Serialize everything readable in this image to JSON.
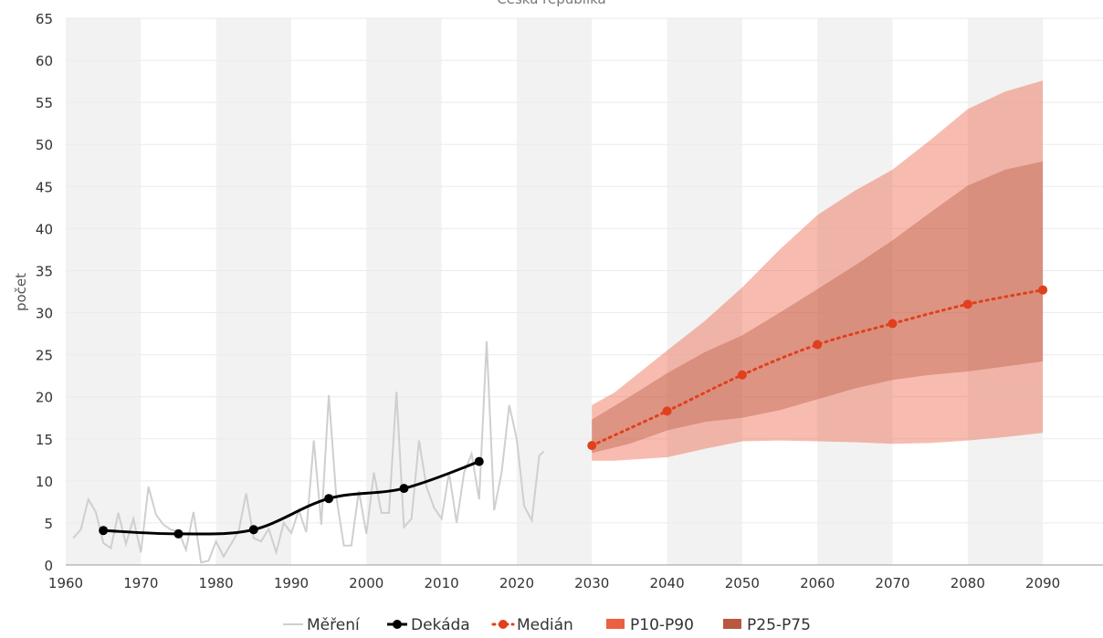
{
  "chart_data": {
    "type": "line",
    "title": "Česká republika",
    "ylabel": "počet",
    "xlabel": "",
    "xlim": [
      1960,
      2098
    ],
    "ylim": [
      0,
      65
    ],
    "x_ticks": [
      1960,
      1970,
      1980,
      1990,
      2000,
      2010,
      2020,
      2030,
      2040,
      2050,
      2060,
      2070,
      2080,
      2090
    ],
    "y_ticks": [
      0,
      5,
      10,
      15,
      20,
      25,
      30,
      35,
      40,
      45,
      50,
      55,
      60,
      65
    ],
    "grid": true,
    "legend_position": "bottom",
    "colors": {
      "measurement": "#cfcfcf",
      "decade": "#000000",
      "median": "#e0401c",
      "p10_p90": "#eb6040",
      "p25_p75": "#b85840",
      "band_shade": "#f2f2f2"
    },
    "series": [
      {
        "name": "Měření",
        "x": [
          1961,
          1962,
          1963,
          1964,
          1965,
          1966,
          1967,
          1968,
          1969,
          1970,
          1971,
          1972,
          1973,
          1974,
          1975,
          1976,
          1977,
          1978,
          1979,
          1980,
          1981,
          1982,
          1983,
          1984,
          1985,
          1986,
          1987,
          1988,
          1989,
          1990,
          1991,
          1992,
          1993,
          1994,
          1995,
          1996,
          1997,
          1998,
          1999,
          2000,
          2001,
          2002,
          2003,
          2004,
          2005,
          2006,
          2007,
          2008,
          2009,
          2010,
          2011,
          2012,
          2013,
          2014,
          2015,
          2016,
          2017,
          2018,
          2019,
          2020,
          2021,
          2022,
          2023
        ],
        "y": [
          3.2,
          4.2,
          7.8,
          6.3,
          2.6,
          2.0,
          6.2,
          2.5,
          5.5,
          1.5,
          9.3,
          6.0,
          4.8,
          4.2,
          4.0,
          1.8,
          6.3,
          0.3,
          0.5,
          2.8,
          1.0,
          2.5,
          4.0,
          8.5,
          3.2,
          2.8,
          4.3,
          1.5,
          5.0,
          3.8,
          6.5,
          3.9,
          14.8,
          4.8,
          20.2,
          8.1,
          2.3,
          2.3,
          8.8,
          3.7,
          11.0,
          6.2,
          6.2,
          20.6,
          4.5,
          5.5,
          14.8,
          9.3,
          6.8,
          5.5,
          11.0,
          5.0,
          11.0,
          13.2,
          7.8,
          26.6,
          6.5,
          11.0,
          19.0,
          15.0,
          7.0,
          5.3,
          13.0
        ],
        "y_last": 13.5
      },
      {
        "name": "Dekáda",
        "x": [
          1965,
          1975,
          1985,
          1995,
          2005,
          2015
        ],
        "y": [
          4.1,
          3.7,
          4.2,
          7.9,
          9.1,
          12.3
        ]
      },
      {
        "name": "Medián",
        "x": [
          2030,
          2040,
          2050,
          2060,
          2070,
          2080,
          2090
        ],
        "y": [
          14.2,
          18.3,
          22.6,
          26.2,
          28.7,
          31.0,
          32.7
        ]
      },
      {
        "name": "P10-P90",
        "x": [
          2030,
          2033,
          2040,
          2045,
          2050,
          2055,
          2060,
          2065,
          2070,
          2075,
          2080,
          2085,
          2090
        ],
        "low": [
          12.4,
          12.4,
          12.8,
          13.8,
          14.7,
          14.8,
          14.7,
          14.6,
          14.4,
          14.5,
          14.8,
          15.2,
          15.7
        ],
        "high": [
          19.0,
          20.5,
          25.5,
          29.0,
          33.0,
          37.5,
          41.6,
          44.5,
          47.0,
          50.5,
          54.2,
          56.3,
          57.6
        ]
      },
      {
        "name": "P25-P75",
        "x": [
          2030,
          2035,
          2040,
          2045,
          2050,
          2055,
          2060,
          2065,
          2070,
          2075,
          2080,
          2085,
          2090
        ],
        "low": [
          13.3,
          14.4,
          16.0,
          17.0,
          17.5,
          18.4,
          19.7,
          21.0,
          22.0,
          22.6,
          23.0,
          23.6,
          24.2
        ],
        "high": [
          17.3,
          20.0,
          22.8,
          25.3,
          27.3,
          30.0,
          32.8,
          35.6,
          38.6,
          41.9,
          45.1,
          47.0,
          48.0
        ]
      }
    ],
    "legend": [
      {
        "label": "Měření",
        "kind": "line-gray"
      },
      {
        "label": "Dekáda",
        "kind": "line-dot-black"
      },
      {
        "label": "Medián",
        "kind": "dotted-red"
      },
      {
        "label": "P10-P90",
        "kind": "box-light"
      },
      {
        "label": "P25-P75",
        "kind": "box-dark"
      }
    ]
  }
}
